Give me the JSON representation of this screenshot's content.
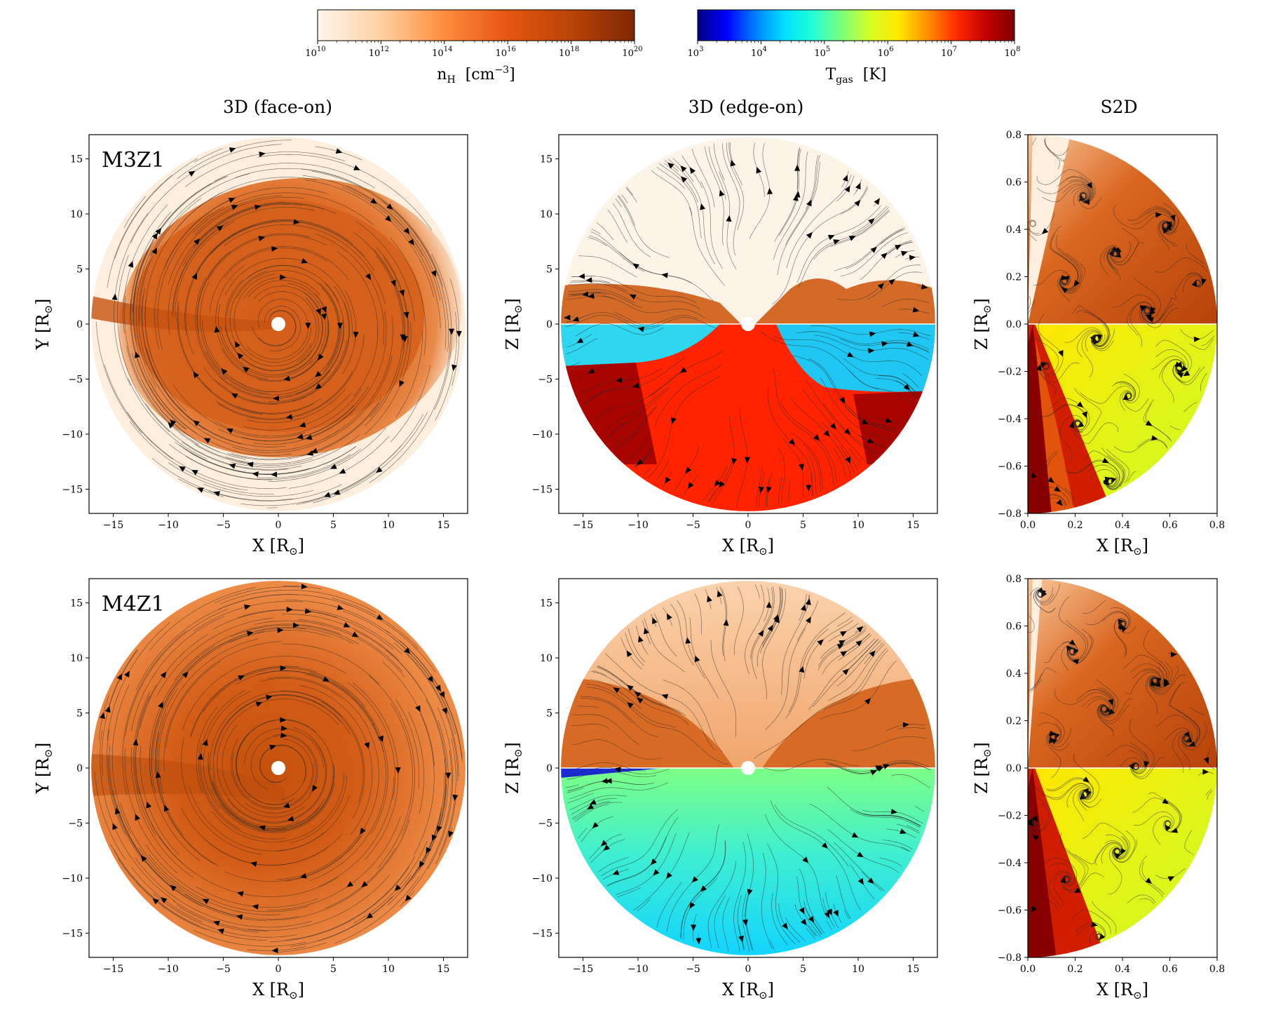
{
  "colorbars": [
    {
      "id": "density",
      "label_main": "n",
      "label_sub": "H",
      "label_unit": "[cm",
      "label_unit_sup": "−3",
      "label_unit_end": "]",
      "tick_base": "10",
      "tick_exponents": [
        "10",
        "12",
        "14",
        "16",
        "18",
        "20"
      ],
      "colors": [
        "#fff5eb",
        "#fdd0a2",
        "#fd8d3c",
        "#e6550d",
        "#b84407",
        "#7f2704"
      ]
    },
    {
      "id": "temperature",
      "label_main": "T",
      "label_sub": "gas",
      "label_unit": "[K]",
      "tick_base": "10",
      "tick_exponents": [
        "3",
        "4",
        "5",
        "6",
        "7",
        "8"
      ],
      "colors": [
        "#00007f",
        "#0000ff",
        "#007fff",
        "#00dfff",
        "#22ffd5",
        "#7dff7a",
        "#d5ff22",
        "#ffe600",
        "#ff8c00",
        "#ff2a00",
        "#c40000",
        "#800000"
      ]
    }
  ],
  "column_titles": [
    "3D (face-on)",
    "3D (edge-on)",
    "S2D"
  ],
  "panel_tags": [
    "M3Z1",
    "M4Z1"
  ],
  "axes": {
    "x_label": "X",
    "y_label_face": "Y",
    "y_label_edge": "Z",
    "unit": "[R",
    "unit_end": "]",
    "sun_symbol": "⊙",
    "x_ticks_3d": [
      "−15",
      "−10",
      "−5",
      "0",
      "5",
      "10",
      "15"
    ],
    "y_ticks_3d": [
      "15",
      "10",
      "5",
      "0",
      "−5",
      "−10",
      "−15"
    ],
    "x_ticks_s2d": [
      "0.0",
      "0.2",
      "0.4",
      "0.6",
      "0.8"
    ],
    "y_ticks_s2d": [
      "0.8",
      "0.6",
      "0.4",
      "0.2",
      "0.0",
      "−0.2",
      "−0.4",
      "−0.6",
      "−0.8"
    ]
  },
  "chart_data": [
    {
      "type": "heatmap",
      "title": "3D (face-on)",
      "model": "M3Z1",
      "quantity": "n_H [cm^-3]",
      "xlabel": "X [R⊙]",
      "ylabel": "Y [R⊙]",
      "xlim": [
        -17.2,
        17.2
      ],
      "ylim": [
        -17.2,
        17.2
      ],
      "domain_radius": 17,
      "density_log_range": [
        10,
        20
      ],
      "overlay": "velocity streamlines"
    },
    {
      "type": "heatmap",
      "title": "3D (edge-on)",
      "model": "M3Z1",
      "quantity": "upper half n_H, lower half T_gas",
      "xlabel": "X [R⊙]",
      "ylabel": "Z [R⊙]",
      "xlim": [
        -17.2,
        17.2
      ],
      "ylim": [
        -17.2,
        17.2
      ],
      "domain_radius": 17,
      "overlay": "velocity streamlines"
    },
    {
      "type": "heatmap",
      "title": "S2D",
      "model": "M3Z1",
      "quantity": "upper half n_H, lower half T_gas",
      "xlabel": "X [R⊙]",
      "ylabel": "Z [R⊙]",
      "xlim": [
        0,
        0.8
      ],
      "ylim": [
        -0.8,
        0.8
      ],
      "overlay": "velocity streamlines"
    },
    {
      "type": "heatmap",
      "title": "3D (face-on)",
      "model": "M4Z1",
      "quantity": "n_H [cm^-3]",
      "xlabel": "X [R⊙]",
      "ylabel": "Y [R⊙]",
      "xlim": [
        -17.2,
        17.2
      ],
      "ylim": [
        -17.2,
        17.2
      ],
      "domain_radius": 17,
      "overlay": "velocity streamlines"
    },
    {
      "type": "heatmap",
      "title": "3D (edge-on)",
      "model": "M4Z1",
      "quantity": "upper half n_H, lower half T_gas",
      "xlabel": "X [R⊙]",
      "ylabel": "Z [R⊙]",
      "xlim": [
        -17.2,
        17.2
      ],
      "ylim": [
        -17.2,
        17.2
      ],
      "domain_radius": 17,
      "overlay": "velocity streamlines"
    },
    {
      "type": "heatmap",
      "title": "S2D",
      "model": "M4Z1",
      "quantity": "upper half n_H, lower half T_gas",
      "xlabel": "X [R⊙]",
      "ylabel": "Z [R⊙]",
      "xlim": [
        0,
        0.8
      ],
      "ylim": [
        -0.8,
        0.8
      ],
      "overlay": "velocity streamlines"
    }
  ]
}
